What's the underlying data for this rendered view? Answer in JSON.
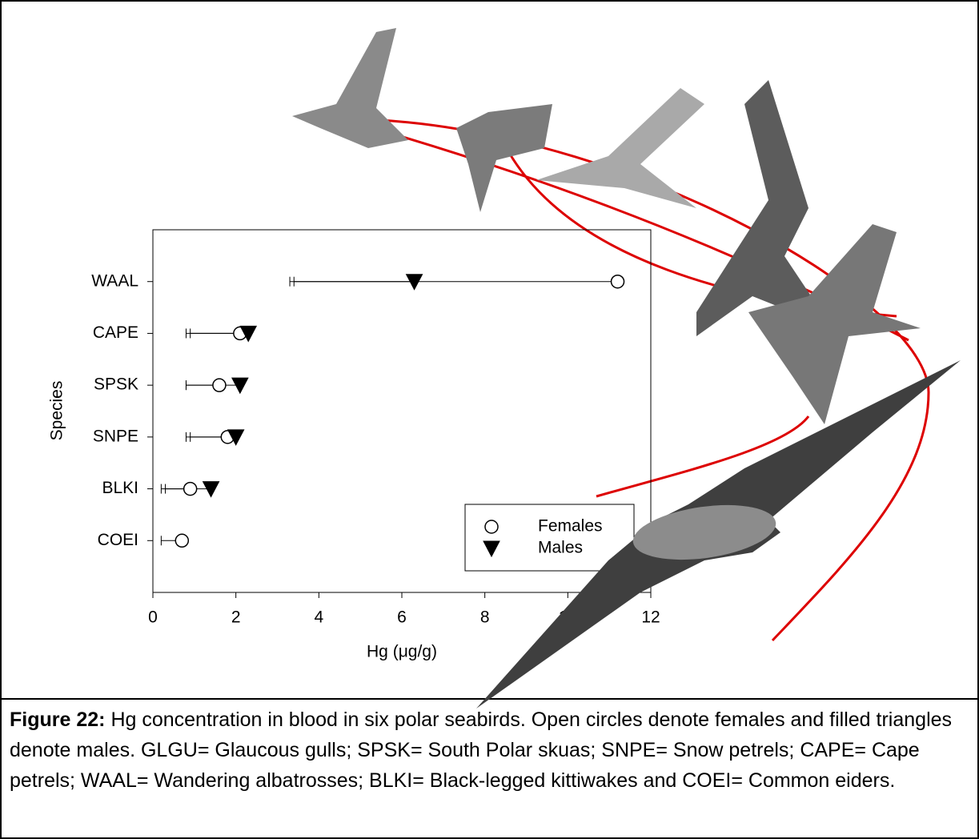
{
  "chart_data": {
    "type": "dot",
    "categories": [
      "WAAL",
      "CAPE",
      "SPSK",
      "SNPE",
      "BLKI",
      "COEI"
    ],
    "series": [
      {
        "name": "Females",
        "marker": "circle",
        "color": "#ffffff",
        "values": [
          11.2,
          2.1,
          1.6,
          1.8,
          0.9,
          0.7
        ],
        "errors": [
          7.9,
          1.3,
          0.8,
          1.0,
          0.7,
          0.5
        ]
      },
      {
        "name": "Males",
        "marker": "triangle",
        "color": "#000000",
        "values": [
          6.3,
          2.3,
          2.1,
          2.0,
          1.4,
          null
        ],
        "errors": [
          2.9,
          1.4,
          1.3,
          1.1,
          1.1,
          null
        ]
      }
    ],
    "error_side": "lower",
    "xlim": [
      0,
      12
    ],
    "xticks": [
      0,
      2,
      4,
      6,
      8,
      10,
      12
    ],
    "x_label": "Hg (μg/g)",
    "y_label": "Species",
    "legend": "lower right"
  },
  "caption": {
    "label": "Figure 22:",
    "text": "Hg concentration in blood in six polar seabirds. Open circles denote females and filled triangles denote males. GLGU= Glaucous gulls; SPSK= South Polar skuas; SNPE= Snow petrels; CAPE= Cape petrels; WAAL= Wandering albatrosses; BLKI= Black-legged kittiwakes and COEI= Common eiders."
  }
}
